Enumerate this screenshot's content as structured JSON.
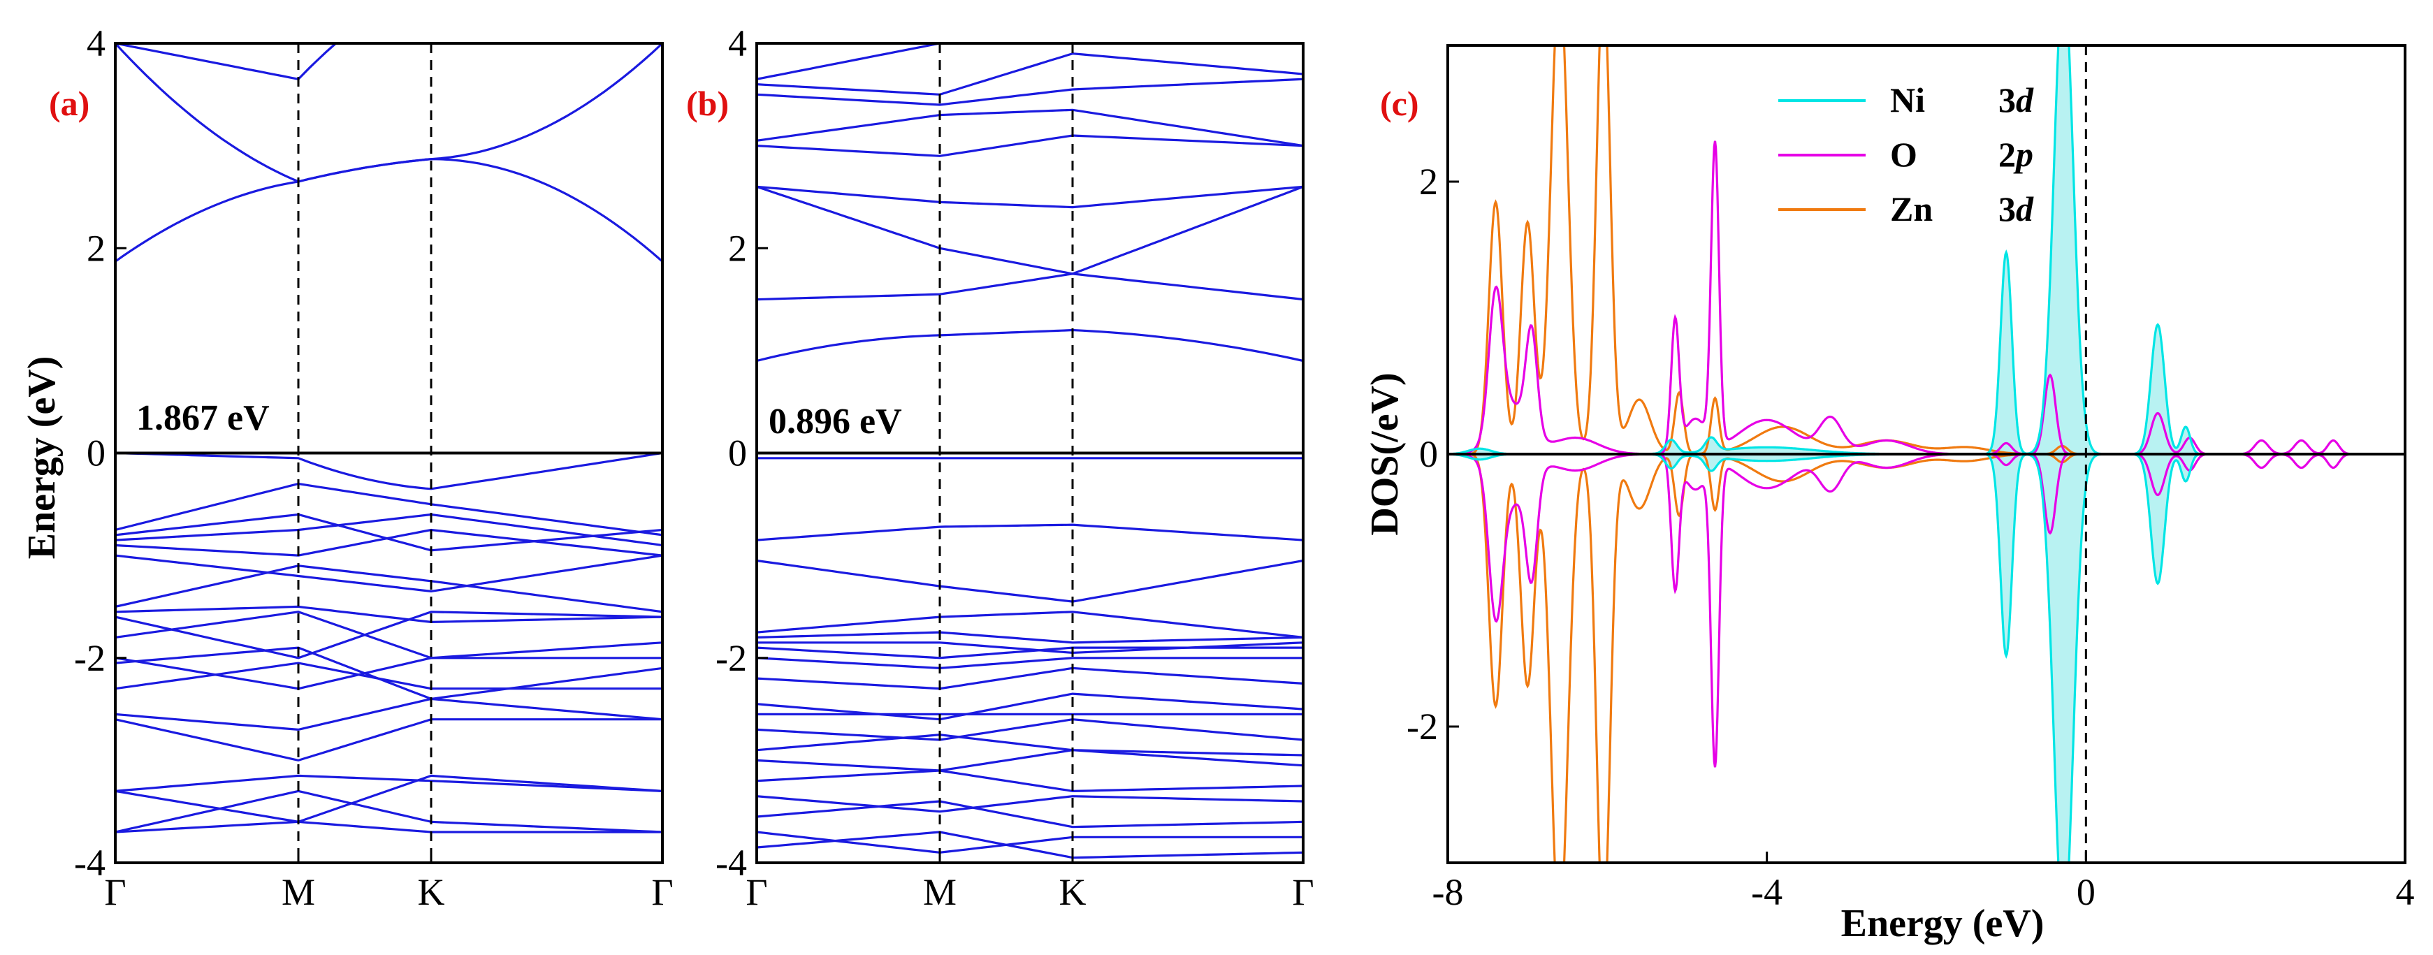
{
  "colors": {
    "band": "#1a1ae0",
    "ni": "#00e5e5",
    "ni_fill": "#b8f2f2",
    "o": "#e600e6",
    "zn": "#f07a10",
    "panel_label": "#e01010"
  },
  "chart_data": [
    {
      "type": "line",
      "panel": "(a)",
      "ylabel": "Energy (eV)",
      "ylim": [
        -4,
        4
      ],
      "yticks": [
        "4",
        "2",
        "0",
        "-2",
        "-4"
      ],
      "k_labels": [
        "Γ",
        "M",
        "K",
        "Γ"
      ],
      "gap_label": "1.867 eV",
      "fermi_level": 0
    },
    {
      "type": "line",
      "panel": "(b)",
      "ylim": [
        -4,
        4
      ],
      "yticks": [
        "4",
        "2",
        "0",
        "-2",
        "-4"
      ],
      "k_labels": [
        "Γ",
        "M",
        "K",
        "Γ"
      ],
      "gap_label": "0.896 eV",
      "fermi_level": 0
    },
    {
      "type": "line",
      "panel": "(c)",
      "xlabel": "Energy (eV)",
      "ylabel": "DOS(/eV)",
      "xlim": [
        -8,
        4
      ],
      "ylim": [
        -3,
        3
      ],
      "xticks": [
        "-8",
        "-4",
        "0",
        "4"
      ],
      "yticks": [
        "2",
        "0",
        "-2"
      ],
      "legend": [
        {
          "element": "Ni",
          "orbital": "3",
          "orbital_italic": "d",
          "color": "#00e5e5"
        },
        {
          "element": "O",
          "orbital": "2",
          "orbital_italic": "p",
          "color": "#e600e6"
        },
        {
          "element": "Zn",
          "orbital": "3",
          "orbital_italic": "d",
          "color": "#f07a10"
        }
      ],
      "series": [
        {
          "name": "Ni 3d",
          "peaks": [
            [
              -7.6,
              0.04,
              0.2
            ],
            [
              -5.2,
              0.1,
              0.1
            ],
            [
              -4.7,
              0.1,
              0.1
            ],
            [
              -4,
              0.05,
              0.8
            ],
            [
              -1.0,
              1.48,
              0.1
            ],
            [
              -0.28,
              3.5,
              0.17
            ],
            [
              0.9,
              0.95,
              0.12
            ],
            [
              1.25,
              0.2,
              0.08
            ]
          ]
        },
        {
          "name": "O 2p",
          "peaks": [
            [
              -7.4,
              1.0,
              0.12
            ],
            [
              -6.95,
              0.75,
              0.1
            ],
            [
              -7.2,
              0.35,
              0.3
            ],
            [
              -6.4,
              0.12,
              0.4
            ],
            [
              -5.15,
              0.95,
              0.07
            ],
            [
              -4.65,
              2.2,
              0.07
            ],
            [
              -4.9,
              0.25,
              0.2
            ],
            [
              -4,
              0.25,
              0.5
            ],
            [
              -3.2,
              0.25,
              0.2
            ],
            [
              -2.5,
              0.1,
              0.4
            ],
            [
              -1.0,
              0.08,
              0.1
            ],
            [
              -0.45,
              0.58,
              0.1
            ],
            [
              0.9,
              0.3,
              0.12
            ],
            [
              1.3,
              0.12,
              0.1
            ],
            [
              2.2,
              0.1,
              0.12
            ],
            [
              2.7,
              0.1,
              0.12
            ],
            [
              3.1,
              0.1,
              0.1
            ]
          ]
        },
        {
          "name": "Zn 3d",
          "peaks": [
            [
              -7.4,
              1.85,
              0.12
            ],
            [
              -7.0,
              1.7,
              0.12
            ],
            [
              -6.6,
              3.5,
              0.15
            ],
            [
              -6.05,
              3.5,
              0.12
            ],
            [
              -5.6,
              0.4,
              0.2
            ],
            [
              -5.1,
              0.45,
              0.08
            ],
            [
              -4.65,
              0.4,
              0.07
            ],
            [
              -3.8,
              0.2,
              0.5
            ],
            [
              -2.5,
              0.1,
              0.5
            ],
            [
              -1.5,
              0.05,
              0.4
            ],
            [
              -0.3,
              0.06,
              0.1
            ]
          ]
        }
      ]
    }
  ]
}
